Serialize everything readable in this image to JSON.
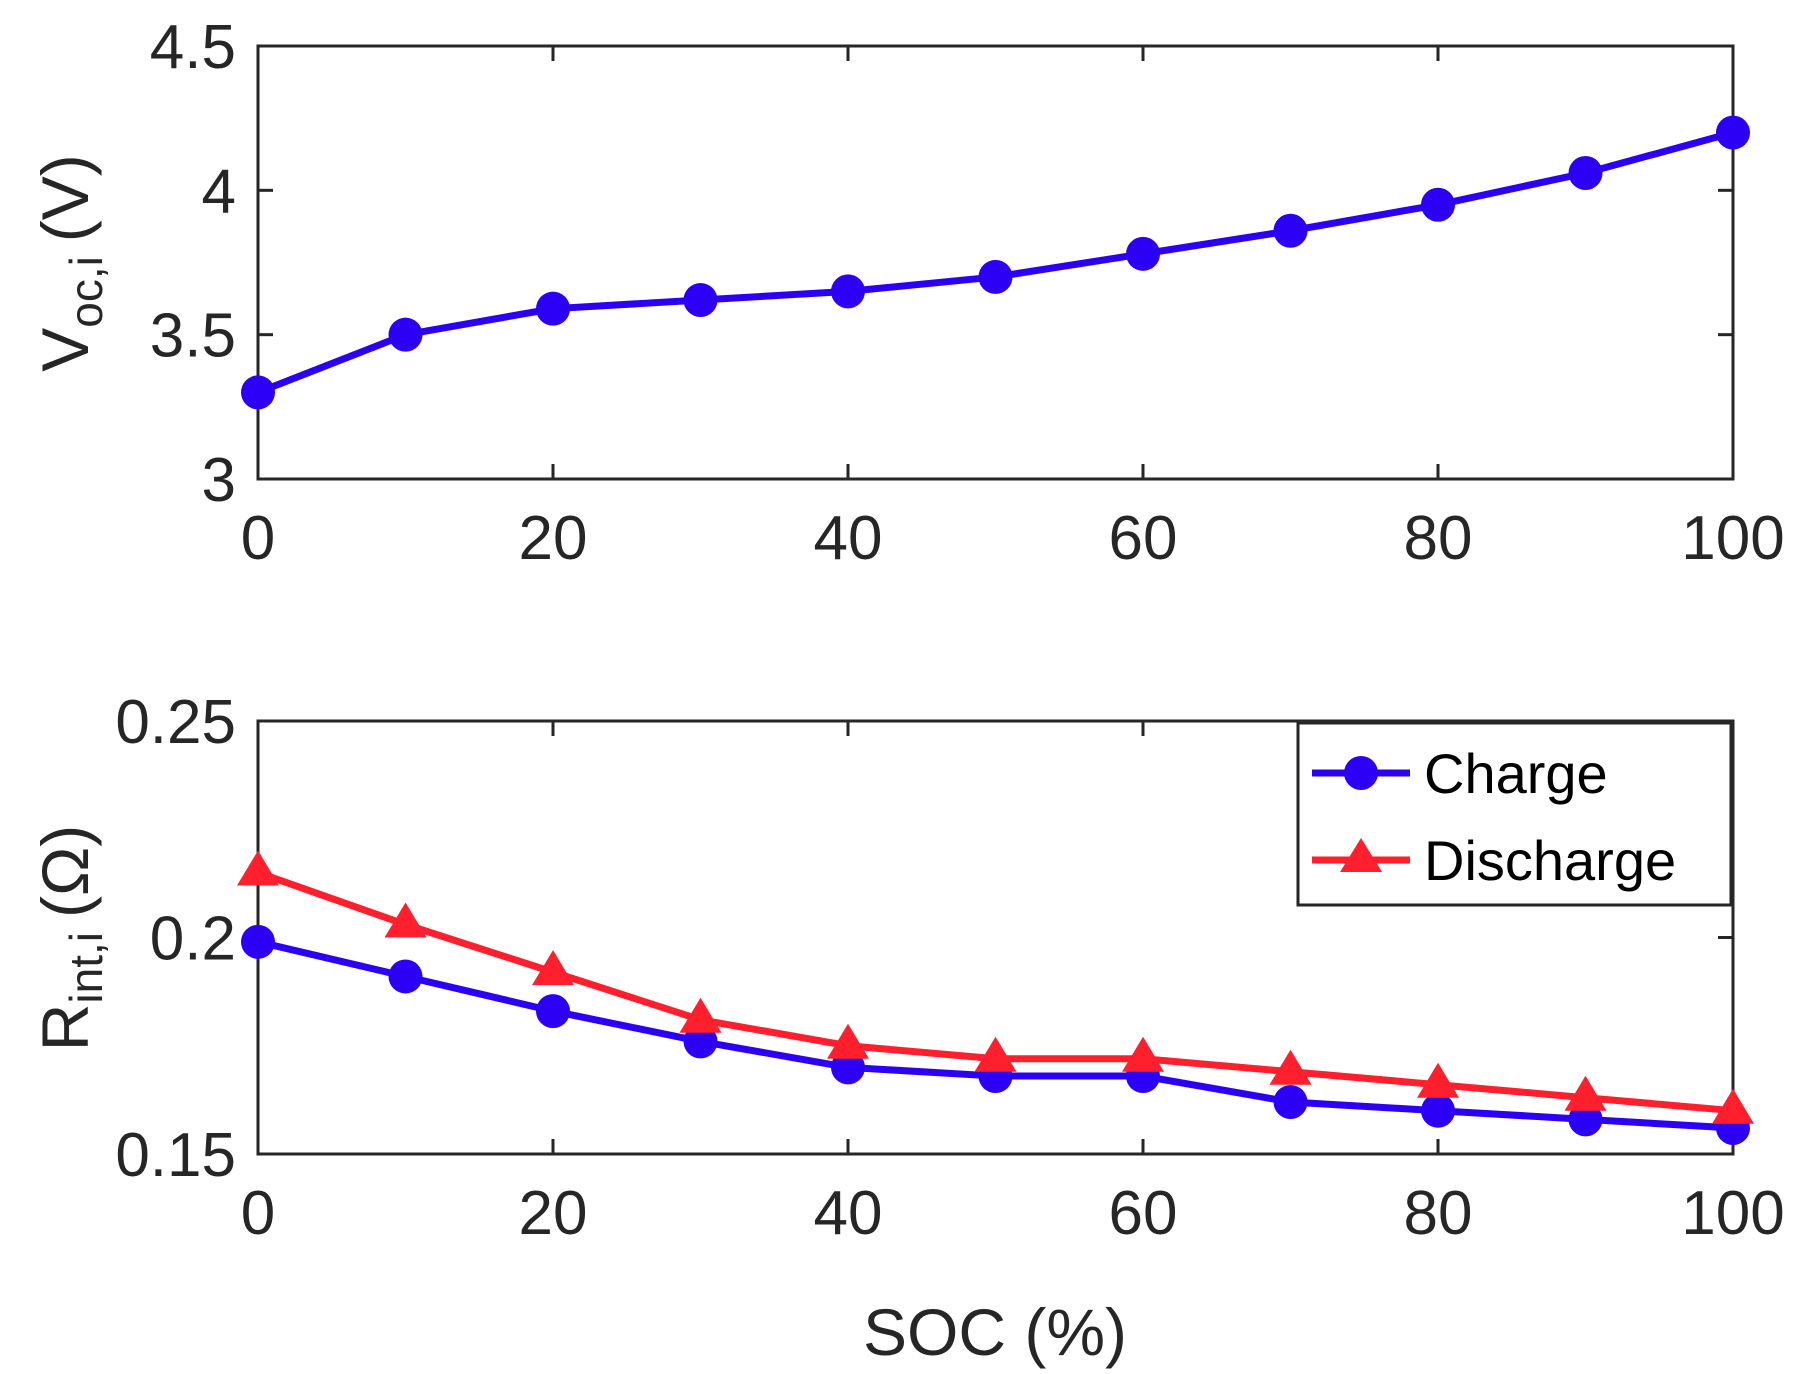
{
  "chart_data": [
    {
      "type": "line",
      "ylabel": "V",
      "ylabel_sub": "oc,i",
      "ylabel_units": "(V)",
      "xlabel": "",
      "xlim": [
        0,
        100
      ],
      "ylim": [
        3,
        4.5
      ],
      "xticks": [
        "0",
        "20",
        "40",
        "60",
        "80",
        "100"
      ],
      "yticks": [
        "3",
        "3.5",
        "4",
        "4.5"
      ],
      "x": [
        0,
        10,
        20,
        30,
        40,
        50,
        60,
        70,
        80,
        90,
        100
      ],
      "series": [
        {
          "name": "Voc",
          "color": "#2b00f5",
          "marker": "circle",
          "values": [
            3.3,
            3.5,
            3.59,
            3.62,
            3.65,
            3.7,
            3.78,
            3.86,
            3.95,
            4.06,
            4.2
          ]
        }
      ]
    },
    {
      "type": "line",
      "ylabel": "R",
      "ylabel_sub": "int,i",
      "ylabel_units": "(Ω)",
      "xlabel": "SOC (%)",
      "xlim": [
        0,
        100
      ],
      "ylim": [
        0.15,
        0.25
      ],
      "xticks": [
        "0",
        "20",
        "40",
        "60",
        "80",
        "100"
      ],
      "yticks": [
        "0.15",
        "0.2",
        "0.25"
      ],
      "x": [
        0,
        10,
        20,
        30,
        40,
        50,
        60,
        70,
        80,
        90,
        100
      ],
      "legend_position": "top-right",
      "series": [
        {
          "name": "Charge",
          "color": "#2b00f5",
          "marker": "circle",
          "values": [
            0.199,
            0.191,
            0.183,
            0.176,
            0.17,
            0.168,
            0.168,
            0.162,
            0.16,
            0.158,
            0.156
          ]
        },
        {
          "name": "Discharge",
          "color": "#ff1f2d",
          "marker": "triangle",
          "values": [
            0.215,
            0.203,
            0.192,
            0.181,
            0.175,
            0.172,
            0.172,
            0.169,
            0.166,
            0.163,
            0.16
          ]
        }
      ]
    }
  ]
}
